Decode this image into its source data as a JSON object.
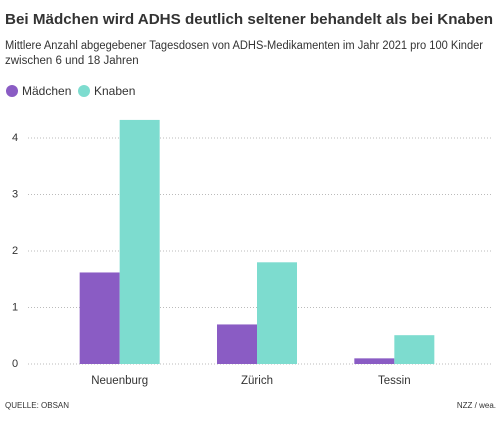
{
  "chart_data": {
    "type": "bar",
    "title": "Bei Mädchen wird ADHS deutlich seltener behandelt als bei Knaben",
    "subtitle": [
      "Mittlere Anzahl abgegebener Tagesdosen von ADHS-Medikamenten im Jahr 2021 pro 100 Kinder",
      "zwischen 6 und 18 Jahren"
    ],
    "categories": [
      "Neuenburg",
      "Zürich",
      "Tessin"
    ],
    "series": [
      {
        "name": "Mädchen",
        "color": "#8a5cc4",
        "values": [
          1.62,
          0.7,
          0.1
        ]
      },
      {
        "name": "Knaben",
        "color": "#7ddccf",
        "values": [
          4.32,
          1.8,
          0.51
        ]
      }
    ],
    "ylim": [
      0,
      4.4
    ],
    "yticks": [
      0,
      1,
      2,
      3,
      4
    ],
    "grid": true,
    "source": "QUELLE: OBSAN",
    "credit": "NZZ / wea."
  }
}
